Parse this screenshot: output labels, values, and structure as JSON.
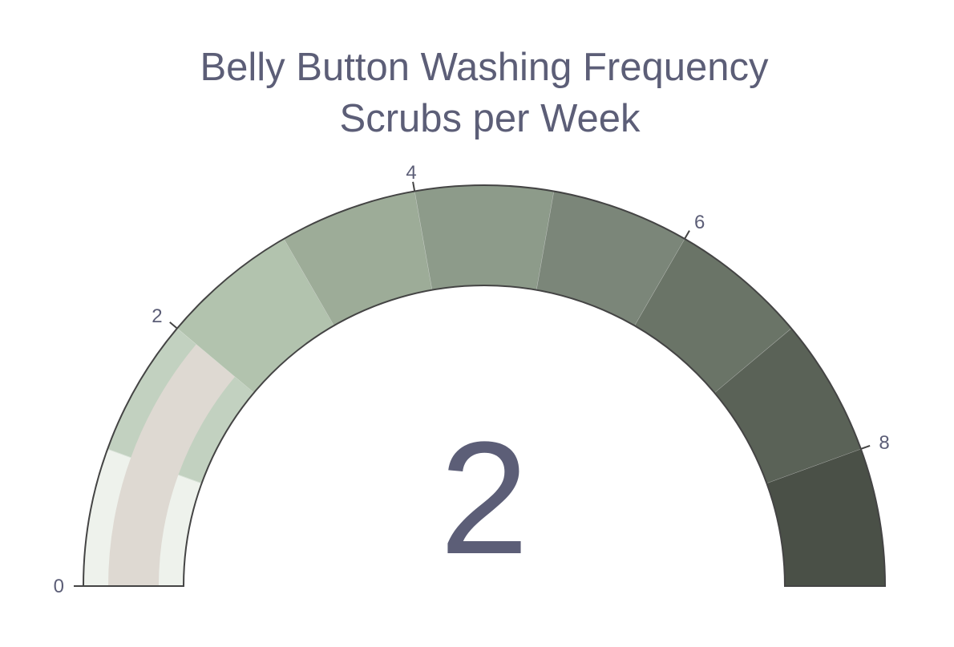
{
  "chart_data": {
    "type": "gauge",
    "title": "Belly Button Washing Frequency",
    "subtitle": "Scrubs per Week",
    "value": 2,
    "value_label": "2",
    "range": [
      0,
      9
    ],
    "ticks": [
      0,
      2,
      4,
      6,
      8
    ],
    "tick_labels": [
      "0",
      "2",
      "4",
      "6",
      "8"
    ],
    "steps": [
      {
        "range": [
          0,
          1
        ],
        "color": "#eef2ec"
      },
      {
        "range": [
          1,
          2
        ],
        "color": "#c2d1c0"
      },
      {
        "range": [
          2,
          3
        ],
        "color": "#b2c3ae"
      },
      {
        "range": [
          3,
          4
        ],
        "color": "#9dac98"
      },
      {
        "range": [
          4,
          5
        ],
        "color": "#8d9b8a"
      },
      {
        "range": [
          5,
          6
        ],
        "color": "#7b8679"
      },
      {
        "range": [
          6,
          7
        ],
        "color": "#6a7467"
      },
      {
        "range": [
          7,
          8
        ],
        "color": "#5a6257"
      },
      {
        "range": [
          8,
          9
        ],
        "color": "#4a5047"
      }
    ],
    "bar_color": "#ded9d2",
    "text_color": "#5c5e77"
  }
}
